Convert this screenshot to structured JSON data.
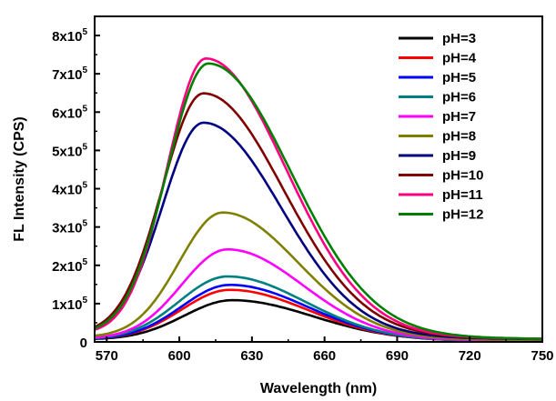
{
  "chart_data": {
    "type": "line",
    "xlabel": "Wavelength (nm)",
    "ylabel": "FL Intensity (CPS)",
    "xlim": [
      565,
      750
    ],
    "ylim": [
      0,
      850000
    ],
    "x_ticks": [
      570,
      600,
      630,
      660,
      690,
      720,
      750
    ],
    "x_tick_labels": [
      "570",
      "600",
      "630",
      "660",
      "690",
      "720",
      "750"
    ],
    "y_ticks": [
      0,
      100000,
      200000,
      300000,
      400000,
      500000,
      600000,
      700000,
      800000
    ],
    "y_tick_labels": [
      {
        "mantissa": "0",
        "exp": ""
      },
      {
        "mantissa": "1x10",
        "exp": "5"
      },
      {
        "mantissa": "2x10",
        "exp": "5"
      },
      {
        "mantissa": "3x10",
        "exp": "5"
      },
      {
        "mantissa": "4x10",
        "exp": "5"
      },
      {
        "mantissa": "5x10",
        "exp": "5"
      },
      {
        "mantissa": "6x10",
        "exp": "5"
      },
      {
        "mantissa": "7x10",
        "exp": "5"
      },
      {
        "mantissa": "8x10",
        "exp": "5"
      }
    ],
    "legend_position": "top-right",
    "grid": false,
    "series": [
      {
        "name": "pH=3",
        "color": "#000000",
        "peak_x": 622,
        "peak_y": 110000,
        "sigma_left": 20,
        "sigma_right": 33,
        "base": 6000
      },
      {
        "name": "pH=4",
        "color": "#ff0000",
        "peak_x": 621,
        "peak_y": 137000,
        "sigma_left": 20,
        "sigma_right": 32,
        "base": 6000
      },
      {
        "name": "pH=5",
        "color": "#0000ff",
        "peak_x": 621,
        "peak_y": 150000,
        "sigma_left": 20,
        "sigma_right": 32,
        "base": 6000
      },
      {
        "name": "pH=6",
        "color": "#008080",
        "peak_x": 620,
        "peak_y": 172000,
        "sigma_left": 20,
        "sigma_right": 32,
        "base": 6000
      },
      {
        "name": "pH=7",
        "color": "#ff00ff",
        "peak_x": 620,
        "peak_y": 243000,
        "sigma_left": 19,
        "sigma_right": 31,
        "base": 8000
      },
      {
        "name": "pH=8",
        "color": "#808000",
        "peak_x": 618,
        "peak_y": 340000,
        "sigma_left": 18,
        "sigma_right": 31,
        "base": 12000
      },
      {
        "name": "pH=9",
        "color": "#000080",
        "peak_x": 610,
        "peak_y": 575000,
        "sigma_left": 17,
        "sigma_right": 32,
        "base": 18000
      },
      {
        "name": "pH=10",
        "color": "#800000",
        "peak_x": 610,
        "peak_y": 652000,
        "sigma_left": 17,
        "sigma_right": 33,
        "base": 20000
      },
      {
        "name": "pH=11",
        "color": "#ff0080",
        "peak_x": 611,
        "peak_y": 743000,
        "sigma_left": 16,
        "sigma_right": 33,
        "base": 20000
      },
      {
        "name": "pH=12",
        "color": "#008000",
        "peak_x": 612,
        "peak_y": 730000,
        "sigma_left": 17,
        "sigma_right": 34,
        "base": 20000
      }
    ]
  }
}
